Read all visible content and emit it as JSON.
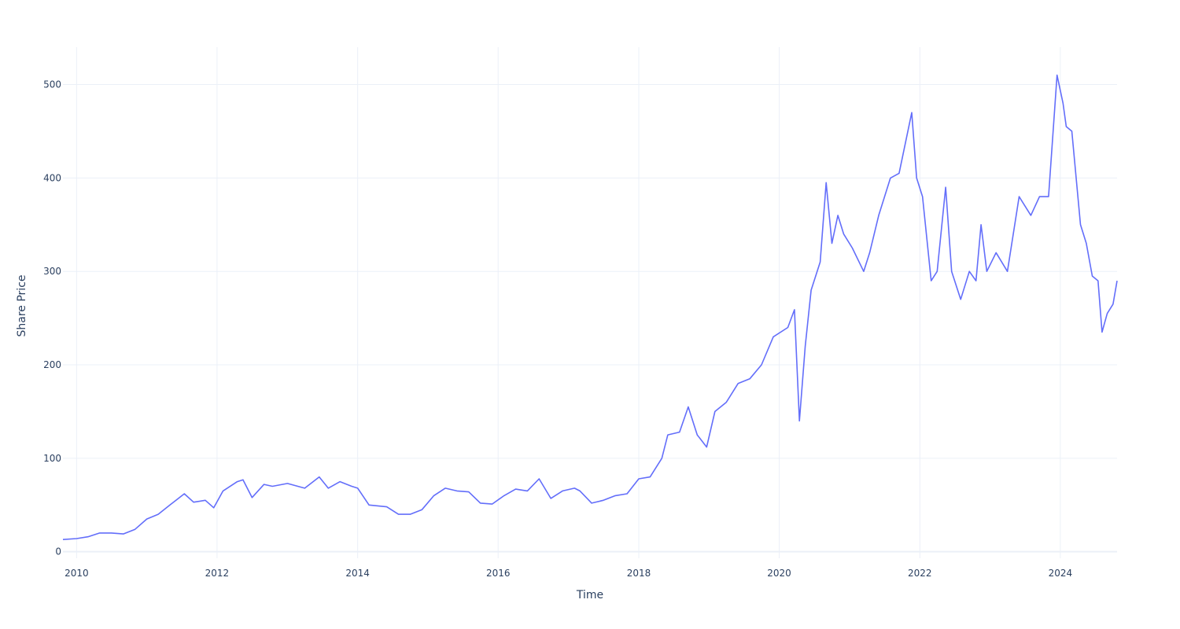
{
  "chart_data": {
    "type": "line",
    "title": "",
    "xlabel": "Time",
    "ylabel": "Share Price",
    "xlim": [
      "2009-10-22",
      "2024-10-22"
    ],
    "ylim": [
      -7,
      540
    ],
    "x_ticks": [
      "2010",
      "2012",
      "2014",
      "2016",
      "2018",
      "2020",
      "2022",
      "2024"
    ],
    "y_ticks": [
      0,
      100,
      200,
      300,
      400,
      500
    ],
    "grid": true,
    "legend": "none",
    "colors": {
      "line": "#636efa",
      "grid": "#ebf0f8",
      "zeroline": "#ebf0f8",
      "text": "#2a3f5f"
    },
    "series": [
      {
        "x": [
          "2009-10-22",
          "2010-01-01",
          "2010-03-01",
          "2010-05-01",
          "2010-07-01",
          "2010-09-01",
          "2010-11-01",
          "2011-01-01",
          "2011-03-01",
          "2011-05-01",
          "2011-07-15",
          "2011-09-01",
          "2011-11-01",
          "2011-12-15",
          "2012-02-01",
          "2012-04-15",
          "2012-05-15",
          "2012-07-01",
          "2012-09-01",
          "2012-10-15",
          "2013-01-01",
          "2013-04-01",
          "2013-06-15",
          "2013-08-01",
          "2013-10-01",
          "2013-12-01",
          "2014-01-01",
          "2014-03-01",
          "2014-06-01",
          "2014-08-01",
          "2014-10-01",
          "2014-12-01",
          "2015-02-01",
          "2015-04-01",
          "2015-06-01",
          "2015-08-01",
          "2015-10-01",
          "2015-12-01",
          "2016-02-01",
          "2016-04-01",
          "2016-06-01",
          "2016-08-01",
          "2016-10-01",
          "2016-12-01",
          "2017-02-01",
          "2017-03-01",
          "2017-05-01",
          "2017-07-01",
          "2017-09-01",
          "2017-11-01",
          "2018-01-01",
          "2018-03-01",
          "2018-05-01",
          "2018-06-01",
          "2018-08-01",
          "2018-09-15",
          "2018-11-01",
          "2018-12-20",
          "2019-02-01",
          "2019-04-01",
          "2019-06-01",
          "2019-08-01",
          "2019-10-01",
          "2019-12-01",
          "2020-02-15",
          "2020-03-20",
          "2020-04-15",
          "2020-05-15",
          "2020-06-15",
          "2020-08-01",
          "2020-09-01",
          "2020-10-01",
          "2020-11-01",
          "2020-12-01",
          "2021-01-15",
          "2021-03-15",
          "2021-04-15",
          "2021-06-01",
          "2021-08-01",
          "2021-09-15",
          "2021-11-20",
          "2021-12-15",
          "2022-01-15",
          "2022-03-01",
          "2022-04-01",
          "2022-05-15",
          "2022-06-15",
          "2022-08-01",
          "2022-09-15",
          "2022-10-20",
          "2022-11-15",
          "2022-12-15",
          "2023-02-01",
          "2023-04-01",
          "2023-06-01",
          "2023-08-01",
          "2023-09-15",
          "2023-11-01",
          "2023-12-15",
          "2024-01-15",
          "2024-02-01",
          "2024-03-01",
          "2024-04-15",
          "2024-05-15",
          "2024-06-15",
          "2024-07-15",
          "2024-08-05",
          "2024-09-01",
          "2024-10-01",
          "2024-10-22"
        ],
        "y": [
          13,
          14,
          16,
          20,
          20,
          19,
          24,
          35,
          40,
          50,
          62,
          53,
          55,
          47,
          65,
          75,
          77,
          58,
          72,
          70,
          73,
          68,
          80,
          68,
          75,
          70,
          68,
          50,
          48,
          40,
          40,
          45,
          60,
          68,
          65,
          64,
          52,
          51,
          60,
          67,
          65,
          78,
          57,
          65,
          68,
          65,
          52,
          55,
          60,
          62,
          78,
          80,
          100,
          125,
          128,
          155,
          125,
          112,
          150,
          160,
          180,
          185,
          200,
          230,
          240,
          259,
          140,
          220,
          280,
          310,
          395,
          330,
          360,
          340,
          325,
          300,
          320,
          360,
          400,
          405,
          470,
          400,
          380,
          290,
          300,
          390,
          300,
          270,
          300,
          290,
          350,
          300,
          320,
          300,
          380,
          360,
          380,
          380,
          510,
          480,
          455,
          450,
          350,
          330,
          295,
          290,
          235,
          255,
          265,
          290
        ]
      }
    ]
  }
}
